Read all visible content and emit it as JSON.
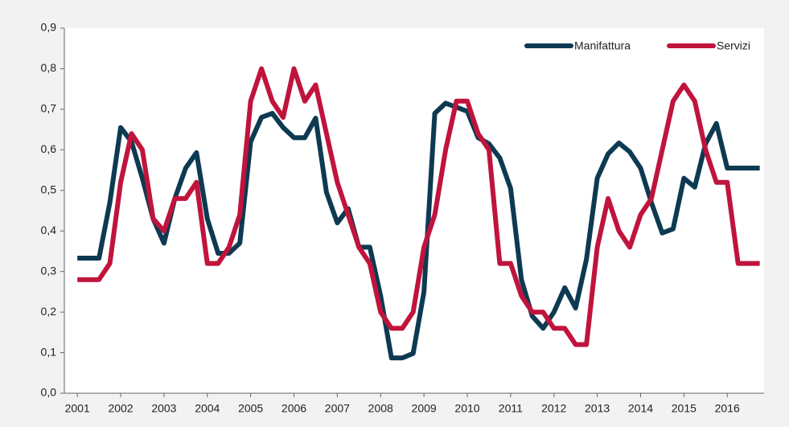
{
  "chart_data": {
    "type": "line",
    "x": [
      2001,
      2001.25,
      2001.5,
      2001.75,
      2002,
      2002.25,
      2002.5,
      2002.75,
      2003,
      2003.25,
      2003.5,
      2003.75,
      2004,
      2004.25,
      2004.5,
      2004.75,
      2005,
      2005.25,
      2005.5,
      2005.75,
      2006,
      2006.25,
      2006.5,
      2006.75,
      2007,
      2007.25,
      2007.5,
      2007.75,
      2008,
      2008.25,
      2008.5,
      2008.75,
      2009,
      2009.25,
      2009.5,
      2009.75,
      2010,
      2010.25,
      2010.5,
      2010.75,
      2011,
      2011.25,
      2011.5,
      2011.75,
      2012,
      2012.25,
      2012.5,
      2012.75,
      2013,
      2013.25,
      2013.5,
      2013.75,
      2014,
      2014.25,
      2014.5,
      2014.75,
      2015,
      2015.25,
      2015.5,
      2015.75,
      2016,
      2016.25,
      2016.5,
      2016.75
    ],
    "series": [
      {
        "name": "Manifattura",
        "color": "#0d3a52",
        "values": [
          0.333,
          0.333,
          0.333,
          0.47,
          0.655,
          0.62,
          0.53,
          0.43,
          0.37,
          0.48,
          0.555,
          0.593,
          0.43,
          0.345,
          0.345,
          0.37,
          0.62,
          0.68,
          0.69,
          0.655,
          0.63,
          0.63,
          0.678,
          0.495,
          0.42,
          0.455,
          0.36,
          0.36,
          0.24,
          0.087,
          0.087,
          0.098,
          0.25,
          0.69,
          0.715,
          0.705,
          0.695,
          0.63,
          0.615,
          0.58,
          0.505,
          0.28,
          0.19,
          0.16,
          0.2,
          0.26,
          0.21,
          0.33,
          0.53,
          0.59,
          0.617,
          0.595,
          0.555,
          0.47,
          0.395,
          0.405,
          0.53,
          0.508,
          0.615,
          0.665,
          0.555,
          0.555,
          0.555,
          0.555
        ]
      },
      {
        "name": "Servizi",
        "color": "#c0143c",
        "values": [
          0.28,
          0.28,
          0.28,
          0.32,
          0.52,
          0.64,
          0.6,
          0.43,
          0.4,
          0.48,
          0.48,
          0.52,
          0.32,
          0.32,
          0.36,
          0.44,
          0.72,
          0.8,
          0.72,
          0.68,
          0.8,
          0.72,
          0.76,
          0.64,
          0.52,
          0.44,
          0.36,
          0.32,
          0.2,
          0.16,
          0.16,
          0.2,
          0.36,
          0.44,
          0.6,
          0.72,
          0.72,
          0.64,
          0.6,
          0.32,
          0.32,
          0.24,
          0.2,
          0.2,
          0.16,
          0.16,
          0.12,
          0.12,
          0.36,
          0.48,
          0.4,
          0.36,
          0.44,
          0.48,
          0.6,
          0.72,
          0.76,
          0.72,
          0.6,
          0.52,
          0.52,
          0.32,
          0.32,
          0.32
        ]
      }
    ],
    "xlim": [
      2000.7,
      2016.85
    ],
    "xticks": [
      2001,
      2002,
      2003,
      2004,
      2005,
      2006,
      2007,
      2008,
      2009,
      2010,
      2011,
      2012,
      2013,
      2014,
      2015,
      2016
    ],
    "ylim": [
      0,
      0.9
    ],
    "yticks": [
      {
        "value": 0,
        "label": "0,0"
      },
      {
        "value": 0.1,
        "label": "0,1"
      },
      {
        "value": 0.2,
        "label": "0,2"
      },
      {
        "value": 0.3,
        "label": "0,3"
      },
      {
        "value": 0.4,
        "label": "0,4"
      },
      {
        "value": 0.5,
        "label": "0,5"
      },
      {
        "value": 0.6,
        "label": "0,6"
      },
      {
        "value": 0.7,
        "label": "0,7"
      },
      {
        "value": 0.8,
        "label": "0,8"
      },
      {
        "value": 0.9,
        "label": "0,9"
      }
    ],
    "legend": "top-right"
  }
}
